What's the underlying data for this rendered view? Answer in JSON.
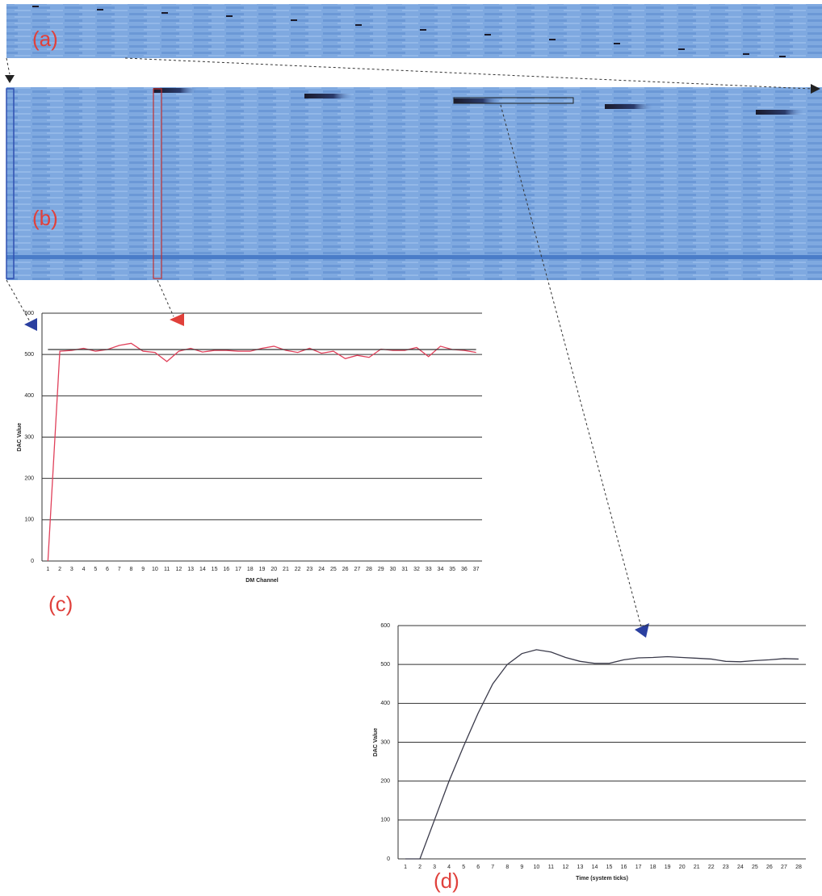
{
  "panels": [
    "(a)",
    "(b)",
    "(c)",
    "(d)"
  ],
  "chart_data": [
    {
      "type": "line",
      "x_label": "DM Channel",
      "y_label": "DAC Value",
      "categories": [
        "1",
        "2",
        "3",
        "4",
        "5",
        "6",
        "7",
        "8",
        "9",
        "10",
        "11",
        "12",
        "13",
        "14",
        "15",
        "16",
        "17",
        "18",
        "19",
        "20",
        "21",
        "22",
        "23",
        "24",
        "25",
        "26",
        "27",
        "28",
        "29",
        "30",
        "31",
        "32",
        "33",
        "34",
        "35",
        "36",
        "37"
      ],
      "ylim": [
        0,
        600
      ],
      "yticks": [
        0,
        100,
        200,
        300,
        400,
        500,
        600
      ],
      "grid": true,
      "series": [
        {
          "color": "#e0405a",
          "values": [
            0,
            508,
            510,
            515,
            508,
            512,
            522,
            527,
            508,
            505,
            483,
            508,
            515,
            506,
            510,
            510,
            508,
            508,
            515,
            520,
            510,
            505,
            515,
            503,
            508,
            490,
            498,
            493,
            513,
            510,
            510,
            517,
            495,
            520,
            512,
            510,
            505
          ]
        },
        {
          "color": "#333333",
          "values": [
            512,
            512,
            512,
            512,
            512,
            512,
            512,
            512,
            512,
            512,
            512,
            512,
            512,
            512,
            512,
            512,
            512,
            512,
            512,
            512,
            512,
            512,
            512,
            512,
            512,
            512,
            512,
            512,
            512,
            512,
            512,
            512,
            512,
            512,
            512,
            512,
            512
          ]
        }
      ]
    },
    {
      "type": "line",
      "x_label": "Time (system ticks)",
      "y_label": "DAC Value",
      "categories": [
        "1",
        "2",
        "3",
        "4",
        "5",
        "6",
        "7",
        "8",
        "9",
        "10",
        "11",
        "12",
        "13",
        "14",
        "15",
        "16",
        "17",
        "18",
        "19",
        "20",
        "21",
        "22",
        "23",
        "24",
        "25",
        "26",
        "27",
        "28"
      ],
      "ylim": [
        0,
        600
      ],
      "yticks": [
        0,
        100,
        200,
        300,
        400,
        500,
        600
      ],
      "grid": true,
      "series": [
        {
          "color": "#3a3a4a",
          "values": [
            0,
            0,
            100,
            200,
            290,
            375,
            450,
            500,
            528,
            538,
            532,
            518,
            508,
            503,
            503,
            512,
            517,
            518,
            520,
            518,
            516,
            514,
            508,
            507,
            510,
            512,
            515,
            514
          ]
        }
      ]
    }
  ]
}
